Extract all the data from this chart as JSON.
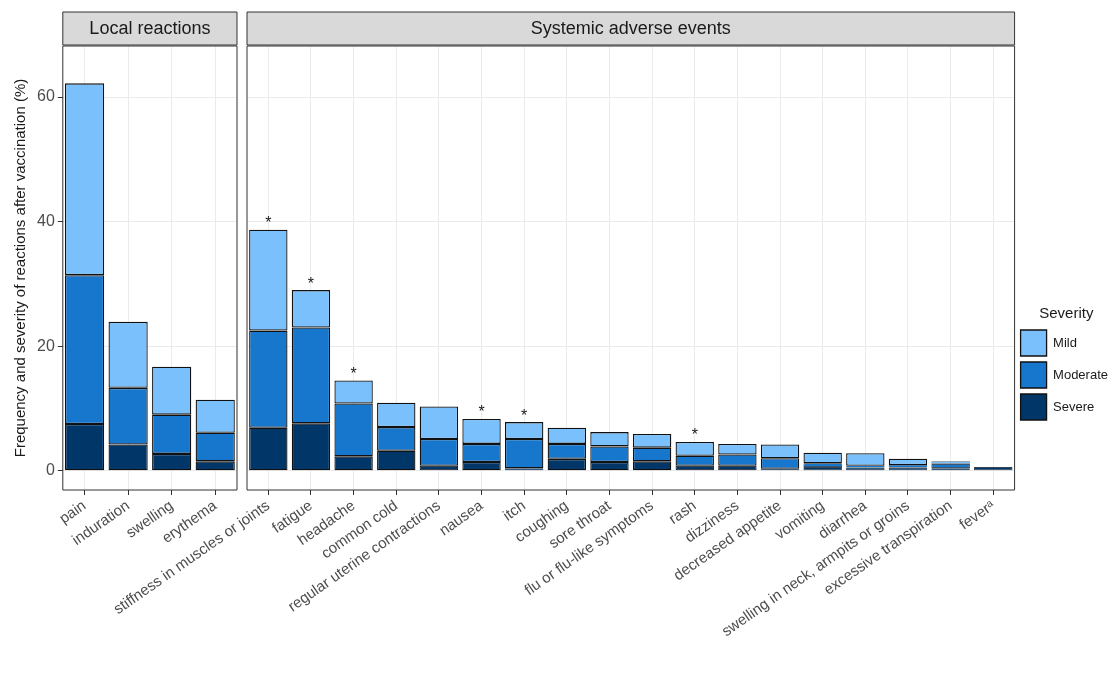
{
  "chart_data": [
    {
      "type": "bar",
      "title": "Local reactions",
      "ylabel": "Frequency and severity of reactions after vaccination (%)",
      "stacked": true,
      "grid": true,
      "legend": false,
      "categories": [
        "pain",
        "induration",
        "swelling",
        "erythema"
      ],
      "ylim": [
        -3.1,
        68.2
      ],
      "yticks": [
        0,
        20,
        40,
        60
      ],
      "series": [
        {
          "color": "#013668",
          "values": [
            7.5,
            4.2,
            2.7,
            1.5
          ]
        },
        {
          "color": "#1777cc",
          "values": [
            23.9,
            9.1,
            6.3,
            4.6
          ]
        },
        {
          "color": "#79c0fc",
          "values": [
            30.8,
            10.6,
            7.7,
            5.3
          ]
        }
      ]
    },
    {
      "type": "bar",
      "title": "Systemic adverse events",
      "legend_title": "Severity",
      "stacked": true,
      "grid": true,
      "legend": "right",
      "tick_labels": "x",
      "categories": [
        "stiffness in muscles or joints",
        "fatigue",
        "headache",
        "common cold",
        "regular uterine contractions",
        "nausea",
        "itch",
        "coughing",
        "sore throat",
        "flu or flu-like symptoms",
        "rash",
        "dizziness",
        "decreased appetite",
        "vomiting",
        "diarrhea",
        "swelling in neck, armpits or groins",
        "excessive transpiration",
        "feverᵃ"
      ],
      "ylim": [
        -3.1,
        68.2
      ],
      "yticks": [
        0,
        20,
        40,
        60
      ],
      "series": [
        {
          "name": "Severe",
          "color": "#013668",
          "values": [
            6.9,
            7.6,
            2.3,
            3.2,
            0.8,
            1.4,
            0.4,
            1.9,
            1.4,
            1.5,
            0.8,
            0.8,
            0.3,
            0.6,
            0.5,
            0.5,
            0.4,
            0.6
          ]
        },
        {
          "name": "Moderate",
          "color": "#1777cc",
          "values": [
            15.6,
            15.4,
            8.5,
            3.8,
            4.3,
            2.9,
            4.7,
            2.4,
            2.5,
            2.2,
            1.6,
            1.8,
            1.7,
            0.6,
            0.3,
            0.4,
            0.7,
            null
          ]
        },
        {
          "name": "Mild",
          "color": "#79c0fc",
          "values": [
            16.2,
            6.0,
            3.7,
            3.9,
            5.2,
            4.0,
            2.7,
            2.6,
            2.3,
            2.2,
            2.2,
            1.7,
            2.2,
            1.7,
            2.0,
            1.0,
            0.4,
            null
          ]
        }
      ],
      "annotations": [
        {
          "text": "*",
          "x": "stiffness in muscles or joints",
          "y": 38.7
        },
        {
          "text": "*",
          "x": "fatigue",
          "y": 29.0
        },
        {
          "text": "*",
          "x": "headache",
          "y": 14.5
        },
        {
          "text": "*",
          "x": "nausea",
          "y": 8.3
        },
        {
          "text": "*",
          "x": "itch",
          "y": 7.8
        },
        {
          "text": "*",
          "x": "rash",
          "y": 4.6
        }
      ]
    }
  ]
}
